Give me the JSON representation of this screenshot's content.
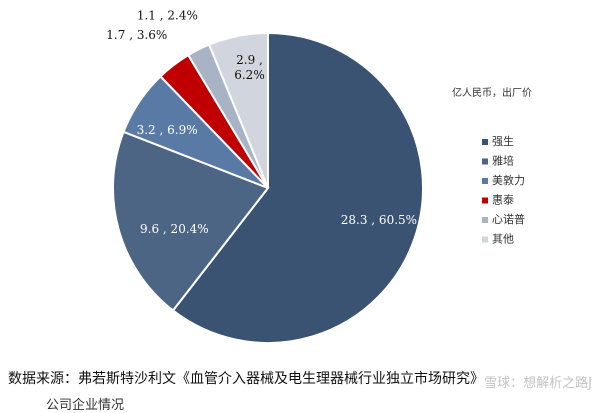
{
  "chart_data": {
    "type": "pie",
    "unit_note": "亿人民币，出厂价",
    "slices": [
      {
        "name": "强生",
        "value": 28.3,
        "percent": 60.5,
        "label": "28.3 , 60.5%",
        "color": "#3b5373"
      },
      {
        "name": "雅培",
        "value": 9.6,
        "percent": 20.4,
        "label": "9.6 , 20.4%",
        "color": "#4c6585"
      },
      {
        "name": "美敦力",
        "value": 3.2,
        "percent": 6.9,
        "label": "3.2 , 6.9%",
        "color": "#5a7aa6"
      },
      {
        "name": "惠泰",
        "value": 1.7,
        "percent": 3.6,
        "label": "1.7 , 3.6%",
        "color": "#c00000"
      },
      {
        "name": "心诺普",
        "value": 1.1,
        "percent": 2.4,
        "label": "1.1 , 2.4%",
        "color": "#a8b4c6"
      },
      {
        "name": "其他",
        "value": 2.9,
        "percent": 6.2,
        "label": "2.9 , 6.2%",
        "color": "#d1d6de"
      }
    ],
    "legend_placement": "right"
  },
  "source": "数据来源：弗若斯特沙利文《血管介入器械及电生理器械行业独立市场研究》",
  "footer_partial": "公司企业情况",
  "watermark": "雪球：想解析之路J"
}
